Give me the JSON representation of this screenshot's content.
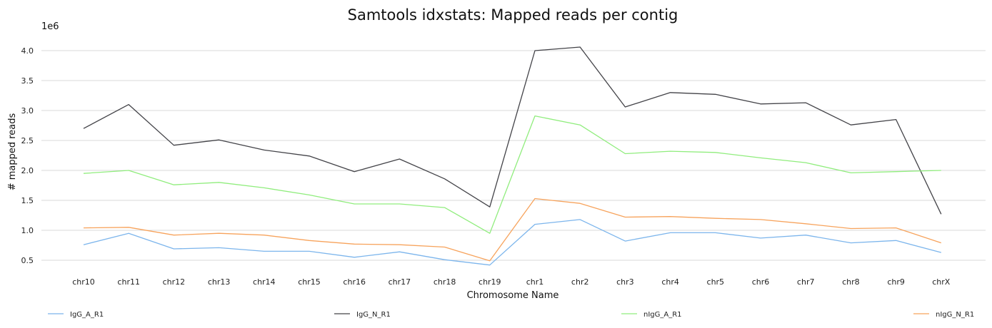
{
  "chart_data": {
    "type": "line",
    "title": "Samtools idxstats: Mapped reads per contig",
    "xlabel": "Chromosome Name",
    "ylabel": "# mapped reads",
    "y_multiplier": "1e6",
    "categories": [
      "chr10",
      "chr11",
      "chr12",
      "chr13",
      "chr14",
      "chr15",
      "chr16",
      "chr17",
      "chr18",
      "chr19",
      "chr1",
      "chr2",
      "chr3",
      "chr4",
      "chr5",
      "chr6",
      "chr7",
      "chr8",
      "chr9",
      "chrX"
    ],
    "yticks": [
      "0.5",
      "1.0",
      "1.5",
      "2.0",
      "2.5",
      "3.0",
      "3.5",
      "4.0"
    ],
    "ylim": [
      0.3,
      4.1
    ],
    "grid": true,
    "legend_position": "bottom",
    "series": [
      {
        "name": "IgG_A_R1",
        "color": "#7cb5ec",
        "values": [
          0.76,
          0.95,
          0.69,
          0.71,
          0.65,
          0.65,
          0.55,
          0.64,
          0.51,
          0.42,
          1.1,
          1.18,
          0.82,
          0.96,
          0.96,
          0.87,
          0.92,
          0.79,
          0.83,
          0.63
        ]
      },
      {
        "name": "IgG_N_R1",
        "color": "#434348",
        "values": [
          2.7,
          3.1,
          2.42,
          2.51,
          2.34,
          2.24,
          1.98,
          2.19,
          1.86,
          1.39,
          4.0,
          4.06,
          3.06,
          3.3,
          3.27,
          3.11,
          3.13,
          2.76,
          2.85,
          1.27
        ]
      },
      {
        "name": "nIgG_A_R1",
        "color": "#90ed7d",
        "values": [
          1.95,
          2.0,
          1.76,
          1.8,
          1.71,
          1.59,
          1.44,
          1.44,
          1.38,
          0.95,
          2.91,
          2.76,
          2.28,
          2.32,
          2.3,
          2.21,
          2.13,
          1.96,
          1.98,
          2.0
        ]
      },
      {
        "name": "nIgG_N_R1",
        "color": "#f7a35c",
        "values": [
          1.04,
          1.05,
          0.92,
          0.95,
          0.92,
          0.83,
          0.77,
          0.76,
          0.72,
          0.49,
          1.53,
          1.45,
          1.22,
          1.23,
          1.2,
          1.18,
          1.11,
          1.03,
          1.04,
          0.79
        ]
      }
    ]
  }
}
